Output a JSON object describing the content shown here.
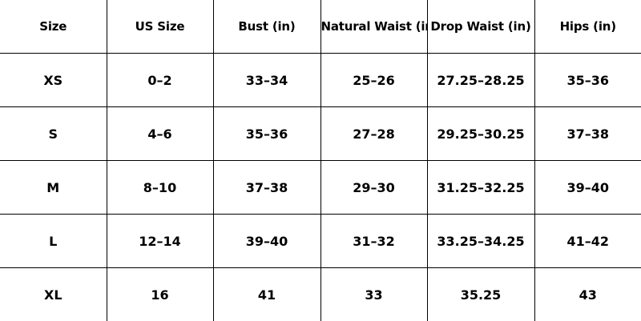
{
  "table": {
    "headers": [
      "Size",
      "US Size",
      "Bust (in)",
      "Natural Waist (in)",
      "Drop Waist (in)",
      "Hips (in)"
    ],
    "rows": [
      [
        "XS",
        "0–2",
        "33–34",
        "25–26",
        "27.25–28.25",
        "35–36"
      ],
      [
        "S",
        "4–6",
        "35–36",
        "27–28",
        "29.25–30.25",
        "37–38"
      ],
      [
        "M",
        "8–10",
        "37–38",
        "29–30",
        "31.25–32.25",
        "39–40"
      ],
      [
        "L",
        "12–14",
        "39–40",
        "31–32",
        "33.25–34.25",
        "41–42"
      ],
      [
        "XL",
        "16",
        "41",
        "33",
        "35.25",
        "43"
      ]
    ]
  }
}
